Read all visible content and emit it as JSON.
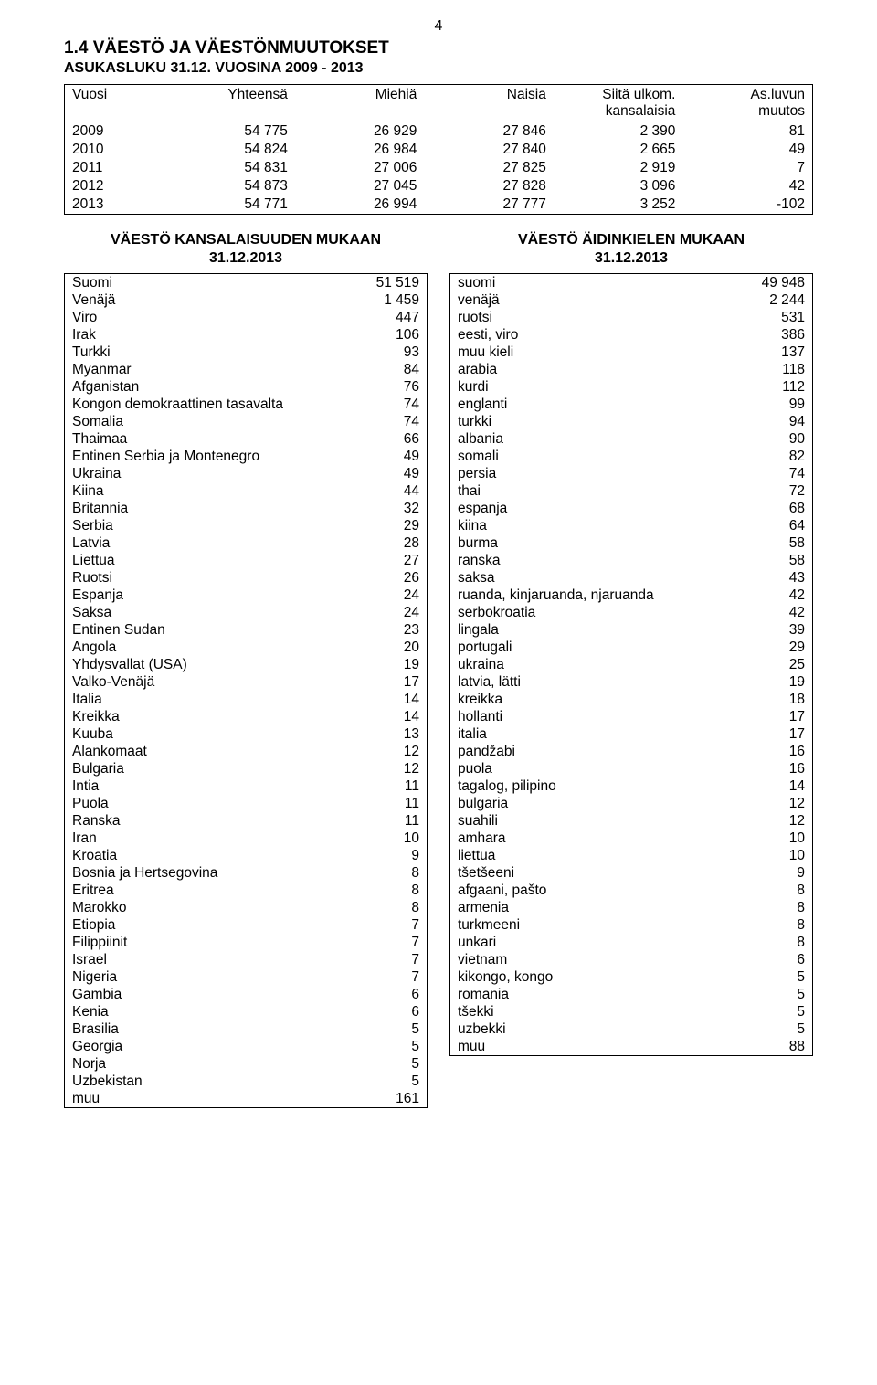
{
  "page_number": "4",
  "heading1": "1.4 VÄESTÖ JA VÄESTÖNMUUTOKSET",
  "heading2": "ASUKASLUKU 31.12. VUOSINA 2009 - 2013",
  "population_table": {
    "columns": [
      "Vuosi",
      "Yhteensä",
      "Miehiä",
      "Naisia",
      "Siitä ulkom.\nkansalaisia",
      "As.luvun\nmuutos"
    ],
    "rows": [
      [
        "2009",
        "54 775",
        "26 929",
        "27 846",
        "2 390",
        "81"
      ],
      [
        "2010",
        "54 824",
        "26 984",
        "27 840",
        "2 665",
        "49"
      ],
      [
        "2011",
        "54 831",
        "27 006",
        "27 825",
        "2 919",
        "7"
      ],
      [
        "2012",
        "54 873",
        "27 045",
        "27 828",
        "3 096",
        "42"
      ],
      [
        "2013",
        "54 771",
        "26 994",
        "27 777",
        "3 252",
        "-102"
      ]
    ],
    "col_align": [
      "left",
      "right",
      "right",
      "right",
      "right",
      "right"
    ],
    "header_fontsize": 15.5,
    "border_color": "#000000"
  },
  "left_section": {
    "title_line1": "VÄESTÖ KANSALAISUUDEN MUKAAN",
    "title_line2": "31.12.2013",
    "rows": [
      [
        "Suomi",
        "51 519"
      ],
      [
        "Venäjä",
        "1 459"
      ],
      [
        "Viro",
        "447"
      ],
      [
        "Irak",
        "106"
      ],
      [
        "Turkki",
        "93"
      ],
      [
        "Myanmar",
        "84"
      ],
      [
        "Afganistan",
        "76"
      ],
      [
        "Kongon demokraattinen tasavalta",
        "74"
      ],
      [
        "Somalia",
        "74"
      ],
      [
        "Thaimaa",
        "66"
      ],
      [
        "Entinen Serbia ja Montenegro",
        "49"
      ],
      [
        "Ukraina",
        "49"
      ],
      [
        "Kiina",
        "44"
      ],
      [
        "Britannia",
        "32"
      ],
      [
        "Serbia",
        "29"
      ],
      [
        "Latvia",
        "28"
      ],
      [
        "Liettua",
        "27"
      ],
      [
        "Ruotsi",
        "26"
      ],
      [
        "Espanja",
        "24"
      ],
      [
        "Saksa",
        "24"
      ],
      [
        "Entinen Sudan",
        "23"
      ],
      [
        "Angola",
        "20"
      ],
      [
        "Yhdysvallat (USA)",
        "19"
      ],
      [
        "Valko-Venäjä",
        "17"
      ],
      [
        "Italia",
        "14"
      ],
      [
        "Kreikka",
        "14"
      ],
      [
        "Kuuba",
        "13"
      ],
      [
        "Alankomaat",
        "12"
      ],
      [
        "Bulgaria",
        "12"
      ],
      [
        "Intia",
        "11"
      ],
      [
        "Puola",
        "11"
      ],
      [
        "Ranska",
        "11"
      ],
      [
        "Iran",
        "10"
      ],
      [
        "Kroatia",
        "9"
      ],
      [
        "Bosnia ja Hertsegovina",
        "8"
      ],
      [
        "Eritrea",
        "8"
      ],
      [
        "Marokko",
        "8"
      ],
      [
        "Etiopia",
        "7"
      ],
      [
        "Filippiinit",
        "7"
      ],
      [
        "Israel",
        "7"
      ],
      [
        "Nigeria",
        "7"
      ],
      [
        "Gambia",
        "6"
      ],
      [
        "Kenia",
        "6"
      ],
      [
        "Brasilia",
        "5"
      ],
      [
        "Georgia",
        "5"
      ],
      [
        "Norja",
        "5"
      ],
      [
        "Uzbekistan",
        "5"
      ],
      [
        "muu",
        "161"
      ]
    ]
  },
  "right_section": {
    "title_line1": "VÄESTÖ ÄIDINKIELEN MUKAAN",
    "title_line2": "31.12.2013",
    "rows": [
      [
        "suomi",
        "49 948"
      ],
      [
        "venäjä",
        "2 244"
      ],
      [
        "ruotsi",
        "531"
      ],
      [
        "eesti, viro",
        "386"
      ],
      [
        "muu kieli",
        "137"
      ],
      [
        "arabia",
        "118"
      ],
      [
        "kurdi",
        "112"
      ],
      [
        "englanti",
        "99"
      ],
      [
        "turkki",
        "94"
      ],
      [
        "albania",
        "90"
      ],
      [
        "somali",
        "82"
      ],
      [
        "persia",
        "74"
      ],
      [
        "thai",
        "72"
      ],
      [
        "espanja",
        "68"
      ],
      [
        "kiina",
        "64"
      ],
      [
        "burma",
        "58"
      ],
      [
        "ranska",
        "58"
      ],
      [
        "saksa",
        "43"
      ],
      [
        "ruanda, kinjaruanda, njaruanda",
        "42"
      ],
      [
        "serbokroatia",
        "42"
      ],
      [
        "lingala",
        "39"
      ],
      [
        "portugali",
        "29"
      ],
      [
        "ukraina",
        "25"
      ],
      [
        "latvia, lätti",
        "19"
      ],
      [
        "kreikka",
        "18"
      ],
      [
        "hollanti",
        "17"
      ],
      [
        "italia",
        "17"
      ],
      [
        "pandžabi",
        "16"
      ],
      [
        "puola",
        "16"
      ],
      [
        "tagalog, pilipino",
        "14"
      ],
      [
        "bulgaria",
        "12"
      ],
      [
        "suahili",
        "12"
      ],
      [
        "amhara",
        "10"
      ],
      [
        "liettua",
        "10"
      ],
      [
        "tšetšeeni",
        "9"
      ],
      [
        "afgaani, pašto",
        "8"
      ],
      [
        "armenia",
        "8"
      ],
      [
        "turkmeeni",
        "8"
      ],
      [
        "unkari",
        "8"
      ],
      [
        "vietnam",
        "6"
      ],
      [
        "kikongo, kongo",
        "5"
      ],
      [
        "romania",
        "5"
      ],
      [
        "tšekki",
        "5"
      ],
      [
        "uzbekki",
        "5"
      ],
      [
        "muu",
        "88"
      ]
    ]
  },
  "styling": {
    "page_bg": "#ffffff",
    "text_color": "#000000",
    "font_family": "Arial",
    "h1_fontsize": 19,
    "h2_fontsize": 16,
    "body_fontsize": 15.5,
    "border_color": "#000000"
  }
}
